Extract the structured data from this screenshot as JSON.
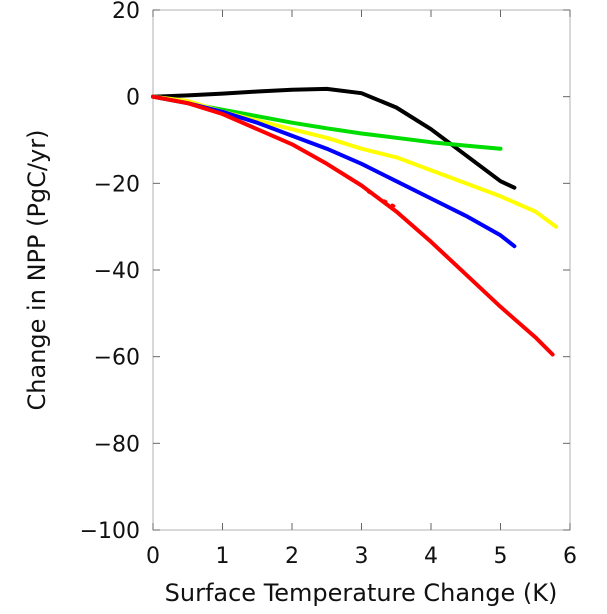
{
  "chart_data": {
    "type": "line",
    "xlabel": "Surface Temperature Change (K)",
    "ylabel": "Change in NPP (PgC/yr)",
    "xlim": [
      0,
      6
    ],
    "ylim": [
      -100,
      20
    ],
    "x_ticks": [
      "0",
      "1",
      "2",
      "3",
      "4",
      "5",
      "6"
    ],
    "y_ticks": [
      "20",
      "0",
      "−20",
      "−40",
      "−60",
      "−80",
      "−100"
    ],
    "grid": false,
    "legend": "none",
    "series": [
      {
        "color": "#000000",
        "x": [
          0,
          0.5,
          1,
          1.5,
          2,
          2.5,
          3,
          3.5,
          4,
          4.5,
          5,
          5.2
        ],
        "y": [
          0,
          0.3,
          0.7,
          1.2,
          1.6,
          1.8,
          0.8,
          -2.5,
          -7.5,
          -13.5,
          -19.5,
          -21
        ]
      },
      {
        "color": "#00dd00",
        "x": [
          0,
          0.5,
          1,
          1.5,
          2,
          2.5,
          3,
          3.5,
          4,
          4.5,
          5
        ],
        "y": [
          0,
          -1.5,
          -3,
          -4.5,
          -6,
          -7.3,
          -8.5,
          -9.5,
          -10.5,
          -11.3,
          -12
        ]
      },
      {
        "color": "#ffff00",
        "x": [
          0,
          0.5,
          1,
          1.5,
          2,
          2.5,
          3,
          3.5,
          4,
          4.5,
          5,
          5.5,
          5.8
        ],
        "y": [
          0,
          -1,
          -3.5,
          -5.5,
          -7.5,
          -9.5,
          -12,
          -14,
          -17,
          -20,
          -23,
          -26.5,
          -30
        ]
      },
      {
        "color": "#0000ff",
        "x": [
          0,
          0.5,
          1,
          1.5,
          2,
          2.5,
          3,
          3.5,
          4,
          4.5,
          5,
          5.2
        ],
        "y": [
          0,
          -1.5,
          -3.5,
          -6,
          -9,
          -12,
          -15.5,
          -19.5,
          -23.5,
          -27.5,
          -32,
          -34.5
        ]
      },
      {
        "color": "#ff0000",
        "x": [
          0,
          0.5,
          1,
          1.5,
          2,
          2.5,
          3,
          3.5,
          4,
          4.5,
          5,
          5.5,
          5.75
        ],
        "y": [
          0,
          -1.5,
          -4,
          -7.5,
          -11,
          -15.5,
          -20.5,
          -26.5,
          -33.5,
          -41,
          -48.5,
          -55.5,
          -59.5
        ]
      },
      {
        "color": "#ff0000",
        "style": "dotted",
        "x": [
          3.1,
          3.3,
          3.5
        ],
        "y": [
          -22,
          -23.8,
          -25.5
        ]
      }
    ]
  }
}
